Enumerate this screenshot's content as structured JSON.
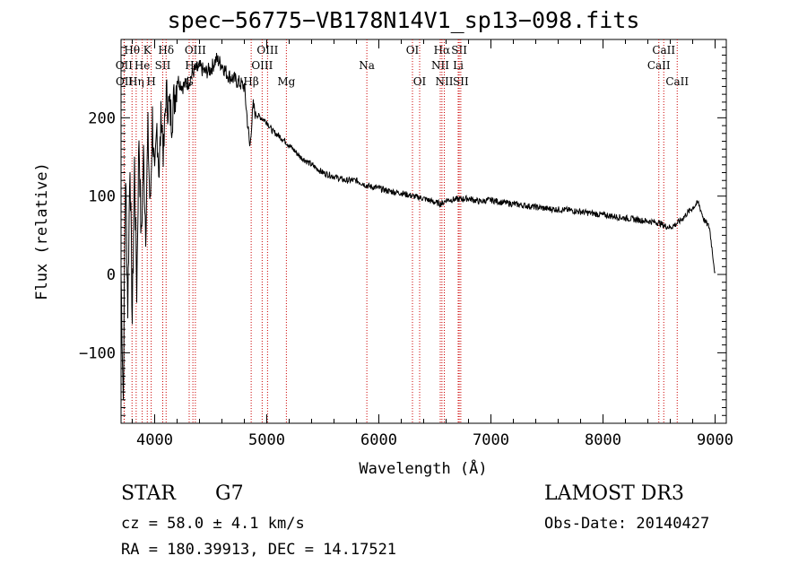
{
  "chart_data": {
    "type": "line",
    "title": "spec−56775−VB178N14V1_sp13−098.fits",
    "xlabel": "Wavelength (Å)",
    "ylabel": "Flux (relative)",
    "xlim": [
      3700,
      9100
    ],
    "ylim": [
      -190,
      300
    ],
    "x_ticks": [
      4000,
      5000,
      6000,
      7000,
      8000,
      9000
    ],
    "y_ticks": [
      -100,
      0,
      100,
      200
    ],
    "y_tick_labels": [
      "−100",
      "0",
      "100",
      "200"
    ],
    "grid": false,
    "series": [
      {
        "name": "flux",
        "x": [
          3700,
          3720,
          3740,
          3760,
          3780,
          3800,
          3820,
          3840,
          3860,
          3880,
          3900,
          3920,
          3940,
          3960,
          3980,
          4000,
          4020,
          4040,
          4060,
          4080,
          4100,
          4150,
          4200,
          4250,
          4300,
          4350,
          4400,
          4450,
          4500,
          4550,
          4600,
          4650,
          4700,
          4750,
          4800,
          4850,
          4860,
          4880,
          4900,
          4950,
          5000,
          5050,
          5100,
          5150,
          5200,
          5300,
          5400,
          5500,
          5600,
          5700,
          5800,
          5900,
          6000,
          6100,
          6200,
          6300,
          6400,
          6500,
          6560,
          6600,
          6700,
          6800,
          6900,
          7000,
          7100,
          7200,
          7300,
          7400,
          7500,
          7600,
          7700,
          7800,
          7900,
          8000,
          8100,
          8200,
          8300,
          8400,
          8500,
          8550,
          8600,
          8650,
          8700,
          8750,
          8800,
          8850,
          8900,
          8950,
          9000
        ],
        "values": [
          0,
          -160,
          130,
          -40,
          150,
          -60,
          140,
          -20,
          180,
          40,
          150,
          60,
          180,
          80,
          200,
          110,
          190,
          130,
          210,
          150,
          230,
          200,
          250,
          240,
          245,
          260,
          265,
          258,
          262,
          275,
          268,
          255,
          250,
          245,
          240,
          160,
          185,
          215,
          205,
          200,
          195,
          183,
          178,
          172,
          165,
          150,
          140,
          130,
          125,
          120,
          120,
          113,
          110,
          106,
          104,
          100,
          97,
          92,
          90,
          95,
          96,
          97,
          93,
          95,
          92,
          90,
          88,
          86,
          84,
          83,
          82,
          80,
          78,
          76,
          74,
          72,
          70,
          68,
          66,
          62,
          60,
          64,
          70,
          78,
          85,
          92,
          70,
          60,
          0
        ]
      }
    ],
    "line_markers": [
      {
        "label": "Hθ",
        "wavelength": 3798,
        "row": 0
      },
      {
        "label": "OII",
        "wavelength": 3727,
        "row": 1
      },
      {
        "label": "OII",
        "wavelength": 3729,
        "row": 2
      },
      {
        "label": "Hη",
        "wavelength": 3835,
        "row": 2
      },
      {
        "label": "He",
        "wavelength": 3889,
        "row": 1
      },
      {
        "label": "K",
        "wavelength": 3934,
        "row": 0
      },
      {
        "label": "H",
        "wavelength": 3969,
        "row": 2
      },
      {
        "label": "SII",
        "wavelength": 4072,
        "row": 1
      },
      {
        "label": "Hδ",
        "wavelength": 4102,
        "row": 0
      },
      {
        "label": "OIII",
        "wavelength": 4363,
        "row": 0
      },
      {
        "label": "Hγ",
        "wavelength": 4341,
        "row": 1
      },
      {
        "label": "G",
        "wavelength": 4308,
        "row": 2
      },
      {
        "label": "Hβ",
        "wavelength": 4861,
        "row": 2
      },
      {
        "label": "OIII",
        "wavelength": 5007,
        "row": 0
      },
      {
        "label": "OIII",
        "wavelength": 4959,
        "row": 1
      },
      {
        "label": "Mg",
        "wavelength": 5175,
        "row": 2
      },
      {
        "label": "Na",
        "wavelength": 5893,
        "row": 1
      },
      {
        "label": "OI",
        "wavelength": 6300,
        "row": 0
      },
      {
        "label": "OI",
        "wavelength": 6364,
        "row": 2
      },
      {
        "label": "Hα",
        "wavelength": 6563,
        "row": 0
      },
      {
        "label": "NII",
        "wavelength": 6548,
        "row": 1
      },
      {
        "label": "NII",
        "wavelength": 6584,
        "row": 2
      },
      {
        "label": "SII",
        "wavelength": 6717,
        "row": 0
      },
      {
        "label": "SII",
        "wavelength": 6731,
        "row": 2
      },
      {
        "label": "Li",
        "wavelength": 6708,
        "row": 1
      },
      {
        "label": "CaII",
        "wavelength": 8542,
        "row": 0
      },
      {
        "label": "CaII",
        "wavelength": 8498,
        "row": 1
      },
      {
        "label": "CaII",
        "wavelength": 8662,
        "row": 2
      }
    ]
  },
  "info": {
    "object_class": "STAR",
    "subclass": "G7",
    "redshift": "cz = 58.0 ± 4.1 km/s",
    "coords": "RA = 180.39913, DEC =  14.17521",
    "survey": "LAMOST DR3",
    "obs_date": "Obs-Date: 20140427"
  }
}
